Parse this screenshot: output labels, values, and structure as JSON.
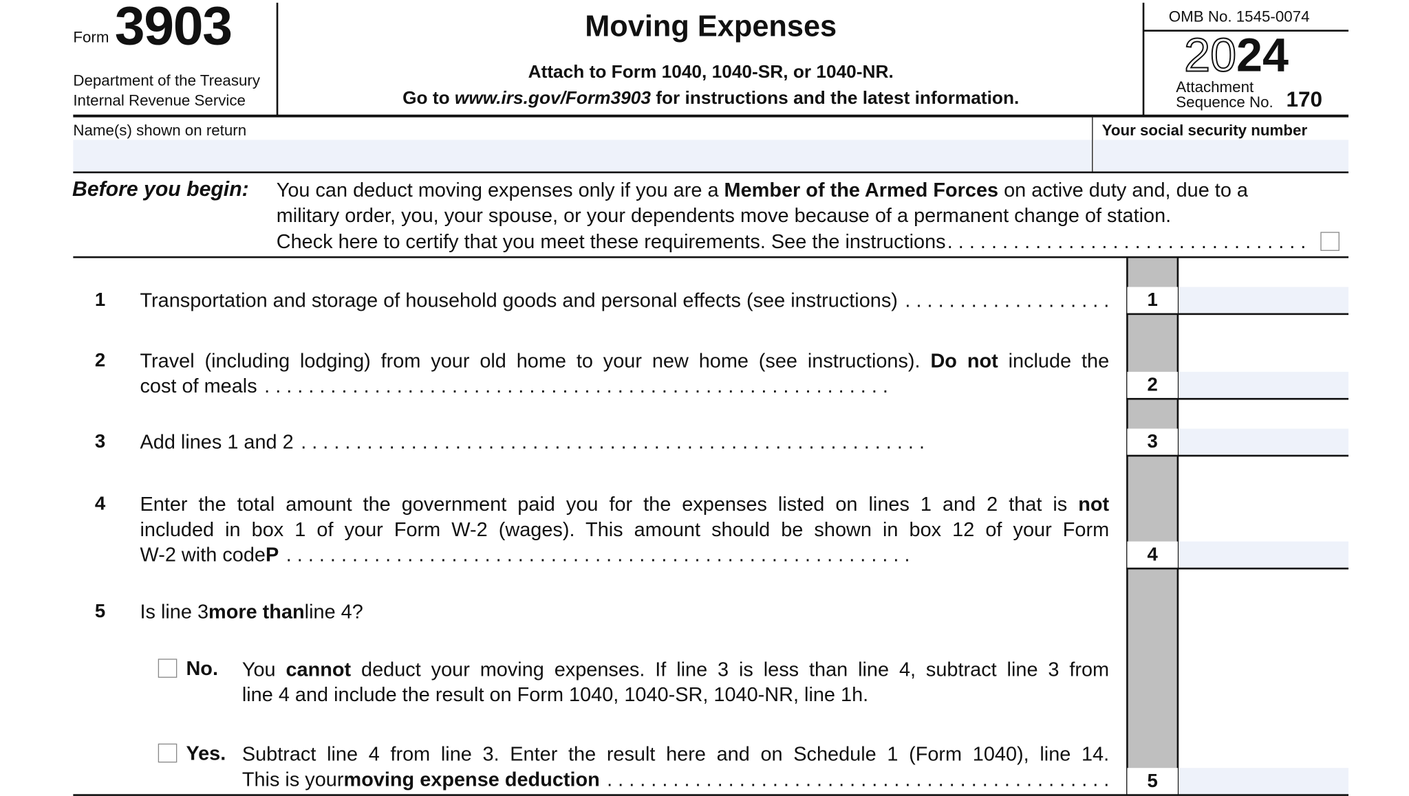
{
  "header": {
    "form_label": "Form",
    "form_number": "3903",
    "dept": "Department of the Treasury",
    "irs": "Internal Revenue Service",
    "title": "Moving Expenses",
    "attach": "Attach to Form 1040, 1040-SR, or 1040-NR.",
    "goto_prefix": "Go to ",
    "goto_url": "www.irs.gov/Form3903",
    "goto_suffix": " for instructions and the latest information.",
    "omb": "OMB No. 1545-0074",
    "year_outline": "20",
    "year_bold": "24",
    "attachment": "Attachment",
    "sequence_label": "Sequence No.",
    "sequence_no": "170"
  },
  "name_row": {
    "name_label": "Name(s) shown on return",
    "name_value": "",
    "ssn_label": "Your social security number",
    "ssn_value": ""
  },
  "before": {
    "label": "Before you begin:",
    "l1a": "You can deduct moving expenses only if you are a ",
    "l1b": "Member of the Armed Forces",
    "l1c": " on active duty and, due to a",
    "l2": "military order, you, your spouse, or your dependents move because of a permanent change of station.",
    "l3": "Check here to certify that you meet these requirements. See the instructions",
    "checked": false
  },
  "dots": ". . . . . . . . . . . . . . . . . . . . . . . . . . . . . . . . . . . . . . . . . . . . . . . . . . . . . . . . .",
  "lines": {
    "l1": {
      "num": "1",
      "text": "Transportation and storage of household goods and personal effects (see instructions)",
      "value": ""
    },
    "l2": {
      "num": "2",
      "text_a": "Travel (including lodging) from your old home to your new home (see instructions). ",
      "text_b": "Do not",
      "text_c": " include the",
      "text_d": "cost of meals",
      "value": ""
    },
    "l3": {
      "num": "3",
      "text": "Add lines 1 and 2",
      "value": ""
    },
    "l4": {
      "num": "4",
      "text_a": "Enter the total amount the government paid you for the expenses listed on lines 1 and 2 that is ",
      "text_b": "not",
      "text_c": "included in box 1 of your Form W-2 (wages). This amount should be shown in box 12 of your Form",
      "text_d": "W-2 with code ",
      "text_e": "P",
      "value": ""
    },
    "l5": {
      "num": "5",
      "text_a": "Is line 3 ",
      "text_b": "more than",
      "text_c": " line 4?",
      "value": ""
    },
    "no": {
      "label": "No.",
      "a": "You ",
      "b": "cannot",
      "c": " deduct your moving expenses. If line 3 is less than line 4, subtract line 3 from",
      "d": "line 4 and include the result on Form 1040, 1040-SR, 1040-NR, line 1h.",
      "checked": false
    },
    "yes": {
      "label": "Yes.",
      "a": "Subtract line 4 from line 3. Enter the result here and on Schedule 1 (Form 1040), line 14.",
      "b": "This is your ",
      "c": "moving expense deduction",
      "checked": false
    }
  }
}
